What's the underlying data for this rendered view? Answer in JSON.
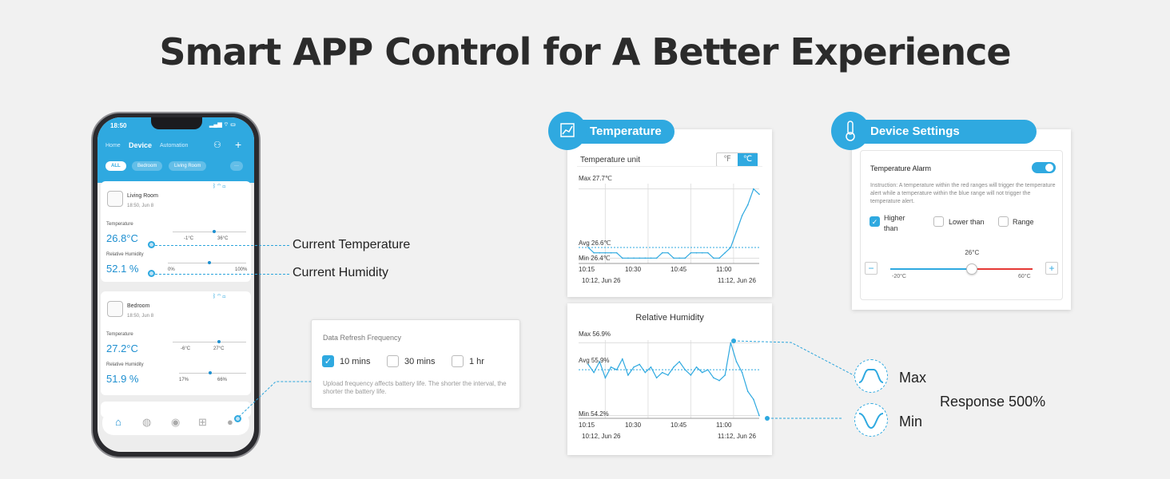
{
  "headline": "Smart APP Control for A Better Experience",
  "phone": {
    "time": "18:50",
    "tabs": [
      "Home",
      "Device",
      "Automation"
    ],
    "filters": [
      "ALL",
      "Bedroom",
      "Living Room"
    ],
    "devices": [
      {
        "name": "Living Room",
        "time": "18:50,  Jun 8",
        "temp_label": "Temperature",
        "temp": "26.8°C",
        "temp_min": "-1°C",
        "temp_max": "36°C",
        "hum_label": "Relative Humidity",
        "hum": "52.1 %",
        "hum_min": "0%",
        "hum_max": "100%"
      },
      {
        "name": "Bedroom",
        "time": "18:50,  Jun 8",
        "temp_label": "Temperature",
        "temp": "27.2°C",
        "temp_min": "-6°C",
        "temp_max": "27°C",
        "hum_label": "Relative Humidity",
        "hum": "51.9 %",
        "hum_min": "17%",
        "hum_max": "66%"
      }
    ]
  },
  "callouts": {
    "temperature": "Current Temperature",
    "humidity": "Current Humidity"
  },
  "refresh": {
    "title": "Data Refresh Frequency",
    "options": [
      "10 mins",
      "30 mins",
      "1 hr"
    ],
    "selected": "10 mins",
    "note": "Upload frequency affects battery life. The shorter the interval, the shorter the battery life."
  },
  "temperature_panel": {
    "badge": "Temperature",
    "unit_label": "Temperature unit",
    "units": [
      "℉",
      "℃"
    ],
    "selected_unit": "℃",
    "max": "Max 27.7℃",
    "avg": "Avg 26.6℃",
    "min": "Min 26.4℃",
    "ticks": [
      "10:15",
      "10:30",
      "10:45",
      "11:00"
    ],
    "start": "10:12,  Jun 26",
    "end": "11:12,  Jun 26"
  },
  "humidity_panel": {
    "title": "Relative Humidity",
    "max": "Max 56.9%",
    "avg": "Avg 55.9%",
    "min": "Min 54.2%",
    "ticks": [
      "10:15",
      "10:30",
      "10:45",
      "11:00"
    ],
    "start": "10:12,  Jun 26",
    "end": "11:12,  Jun 26"
  },
  "settings": {
    "badge": "Device Settings",
    "alarm_label": "Temperature Alarm",
    "alarm_on": true,
    "instruction": "Instruction: A temperature within the red ranges will trigger the temperature alert while a temperature within the blue range will not trigger the temperature alert.",
    "options": [
      "Higher than",
      "Lower than",
      "Range"
    ],
    "selected": "Higher than",
    "threshold": "26°C",
    "range_min": "-20°C",
    "range_max": "60°C",
    "threshold_value": 26,
    "range": [
      -20,
      60
    ]
  },
  "response": {
    "max_label": "Max",
    "min_label": "Min",
    "text": "Response 500%"
  },
  "colors": {
    "accent": "#2fa9e0",
    "alarm": "#e53935",
    "text": "#2b2b2b"
  },
  "chart_data": [
    {
      "type": "line",
      "title": "",
      "x": [
        "10:12",
        "10:14",
        "10:16",
        "10:18",
        "10:20",
        "10:22",
        "10:24",
        "10:26",
        "10:28",
        "10:30",
        "10:32",
        "10:34",
        "10:36",
        "10:38",
        "10:40",
        "10:42",
        "10:44",
        "10:46",
        "10:48",
        "10:50",
        "10:52",
        "10:54",
        "10:56",
        "10:58",
        "11:00",
        "11:02",
        "11:04",
        "11:06",
        "11:08",
        "11:10",
        "11:12"
      ],
      "series": [
        {
          "values": [
            26.6,
            26.5,
            26.5,
            26.5,
            26.5,
            26.5,
            26.4,
            26.4,
            26.4,
            26.4,
            26.4,
            26.4,
            26.4,
            26.5,
            26.5,
            26.4,
            26.4,
            26.4,
            26.5,
            26.5,
            26.5,
            26.5,
            26.4,
            26.4,
            26.5,
            26.6,
            26.9,
            27.2,
            27.4,
            27.7,
            27.6
          ]
        }
      ],
      "annotations": [
        "Max 27.7℃",
        "Avg 26.6℃",
        "Min 26.4℃"
      ],
      "ylim": [
        26.3,
        27.8
      ]
    },
    {
      "type": "line",
      "title": "Relative Humidity",
      "x": [
        "10:12",
        "10:14",
        "10:16",
        "10:18",
        "10:20",
        "10:22",
        "10:24",
        "10:26",
        "10:28",
        "10:30",
        "10:32",
        "10:34",
        "10:36",
        "10:38",
        "10:40",
        "10:42",
        "10:44",
        "10:46",
        "10:48",
        "10:50",
        "10:52",
        "10:54",
        "10:56",
        "10:58",
        "11:00",
        "11:02",
        "11:04",
        "11:06",
        "11:08",
        "11:10",
        "11:12"
      ],
      "series": [
        {
          "values": [
            56.1,
            55.8,
            56.2,
            55.6,
            56.0,
            55.9,
            56.3,
            55.7,
            56.0,
            56.1,
            55.8,
            56.0,
            55.6,
            55.8,
            55.7,
            56.0,
            56.2,
            55.9,
            55.7,
            56.0,
            55.8,
            55.9,
            55.6,
            55.5,
            55.7,
            56.9,
            56.2,
            55.8,
            55.1,
            54.8,
            54.2
          ]
        }
      ],
      "annotations": [
        "Max 56.9%",
        "Avg 55.9%",
        "Min 54.2%"
      ],
      "ylim": [
        54.1,
        57.0
      ]
    }
  ]
}
